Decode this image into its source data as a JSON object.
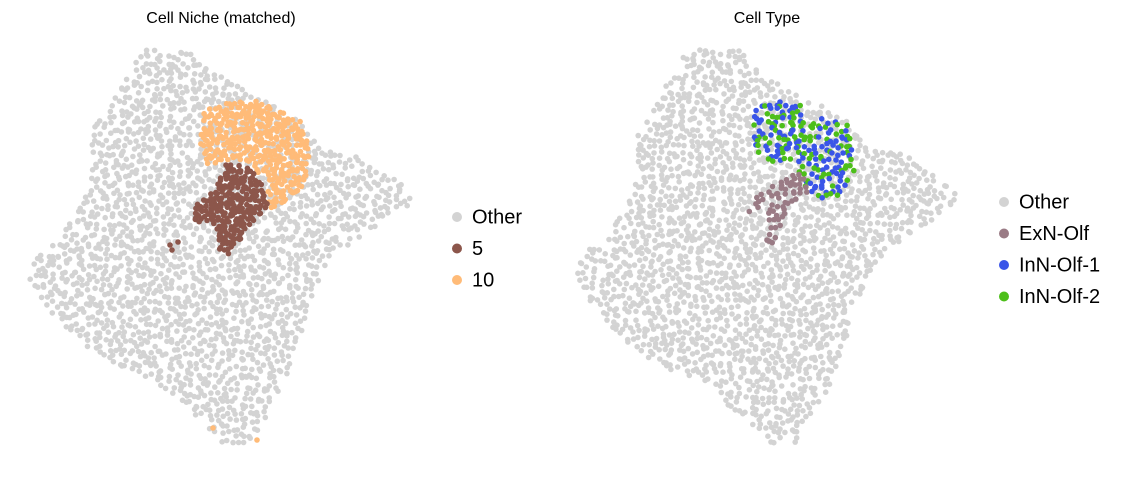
{
  "chart_data": [
    {
      "type": "scatter",
      "title": "Cell Niche (matched)",
      "series": [
        {
          "name": "Other",
          "color": "#d3d3d3"
        },
        {
          "name": "5",
          "color": "#8c564b"
        },
        {
          "name": "10",
          "color": "#ffbb78"
        }
      ]
    },
    {
      "type": "scatter",
      "title": "Cell Type",
      "series": [
        {
          "name": "Other",
          "color": "#d3d3d3"
        },
        {
          "name": "ExN-Olf",
          "color": "#9a7b85"
        },
        {
          "name": "InN-Olf-1",
          "color": "#3a55e8"
        },
        {
          "name": "InN-Olf-2",
          "color": "#4dbf1a"
        }
      ]
    }
  ]
}
